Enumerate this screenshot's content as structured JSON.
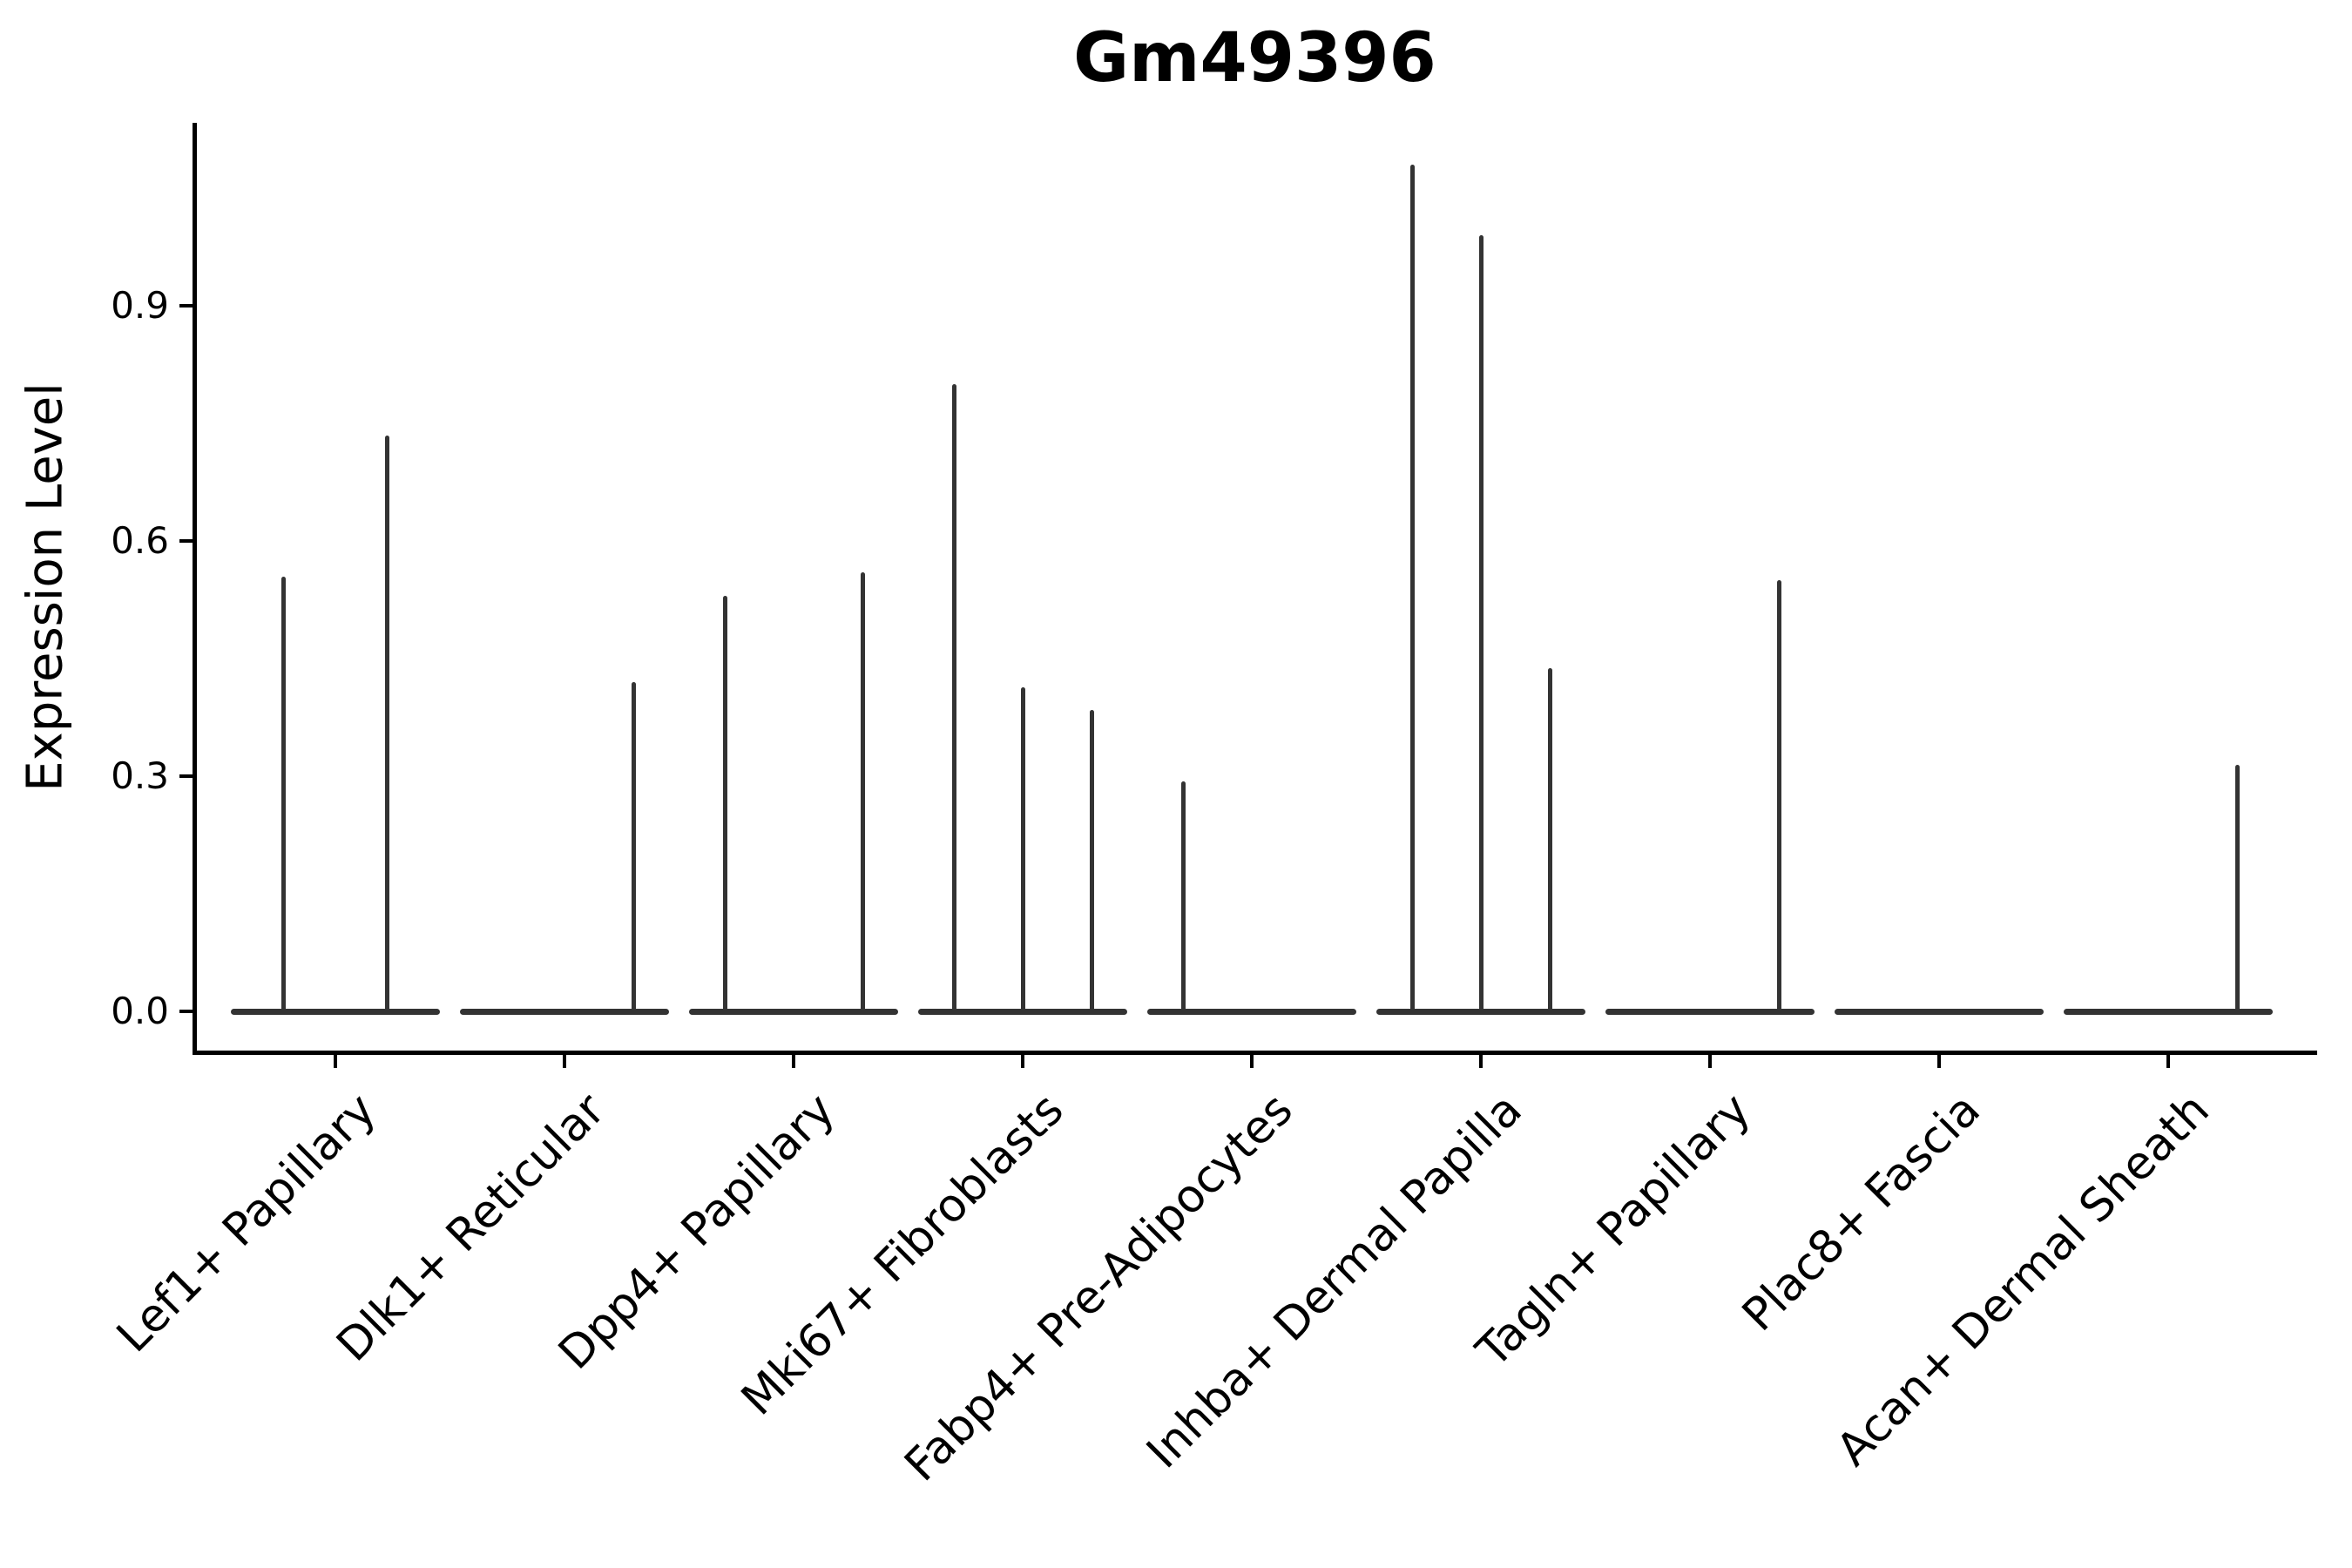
{
  "title": "Gm49396",
  "axes": {
    "ylabel": "Expression Level",
    "ytick_labels": [
      "0.0",
      "0.3",
      "0.6",
      "0.9"
    ],
    "ytick_values": [
      0.0,
      0.3,
      0.6,
      0.9
    ],
    "ylim": [
      -0.054,
      1.134
    ]
  },
  "colors": {
    "violin": "#333333",
    "axis": "#000000",
    "background": "#ffffff",
    "title_text": "#000000"
  },
  "chart_data": {
    "type": "violin",
    "title": "Gm49396",
    "xlabel": "",
    "ylabel": "Expression Level",
    "ylim": [
      -0.054,
      1.134
    ],
    "yticks": [
      0.0,
      0.3,
      0.6,
      0.9
    ],
    "grid": false,
    "legend_position": "none",
    "style_note": "zero-inflated single-cell expression violins: each sub-violin collapses to a wide flat base at 0 with a thin vertical spike reaching the max expression value",
    "categories": [
      "Lef1+ Papillary",
      "Dlk1+ Reticular",
      "Dpp4+ Papillary",
      "Mki67+ Fibroblasts",
      "Fabp4+ Pre-Adipocytes",
      "Inhba+ Dermal Papilla",
      "Tagln+ Papillary",
      "Plac8+ Fascia",
      "Acan+ Dermal Sheath"
    ],
    "violins": [
      {
        "category": "Lef1+ Papillary",
        "slots": 2,
        "spikes": [
          {
            "slot": 0,
            "max": 0.555
          },
          {
            "slot": 1,
            "max": 0.735
          }
        ]
      },
      {
        "category": "Dlk1+ Reticular",
        "slots": 3,
        "spikes": [
          {
            "slot": 2,
            "max": 0.42
          }
        ]
      },
      {
        "category": "Dpp4+ Papillary",
        "slots": 3,
        "spikes": [
          {
            "slot": 0,
            "max": 0.53
          },
          {
            "slot": 2,
            "max": 0.56
          }
        ]
      },
      {
        "category": "Mki67+ Fibroblasts",
        "slots": 3,
        "spikes": [
          {
            "slot": 0,
            "max": 0.8
          },
          {
            "slot": 1,
            "max": 0.413
          },
          {
            "slot": 2,
            "max": 0.384
          }
        ]
      },
      {
        "category": "Fabp4+ Pre-Adipocytes",
        "slots": 3,
        "spikes": [
          {
            "slot": 0,
            "max": 0.293
          }
        ]
      },
      {
        "category": "Inhba+ Dermal Papilla",
        "slots": 3,
        "spikes": [
          {
            "slot": 0,
            "max": 1.08
          },
          {
            "slot": 1,
            "max": 0.99
          },
          {
            "slot": 2,
            "max": 0.438
          }
        ]
      },
      {
        "category": "Tagln+ Papillary",
        "slots": 3,
        "spikes": [
          {
            "slot": 2,
            "max": 0.55
          }
        ]
      },
      {
        "category": "Plac8+ Fascia",
        "slots": 3,
        "spikes": []
      },
      {
        "category": "Acan+ Dermal Sheath",
        "slots": 3,
        "spikes": [
          {
            "slot": 2,
            "max": 0.315
          }
        ]
      }
    ]
  }
}
